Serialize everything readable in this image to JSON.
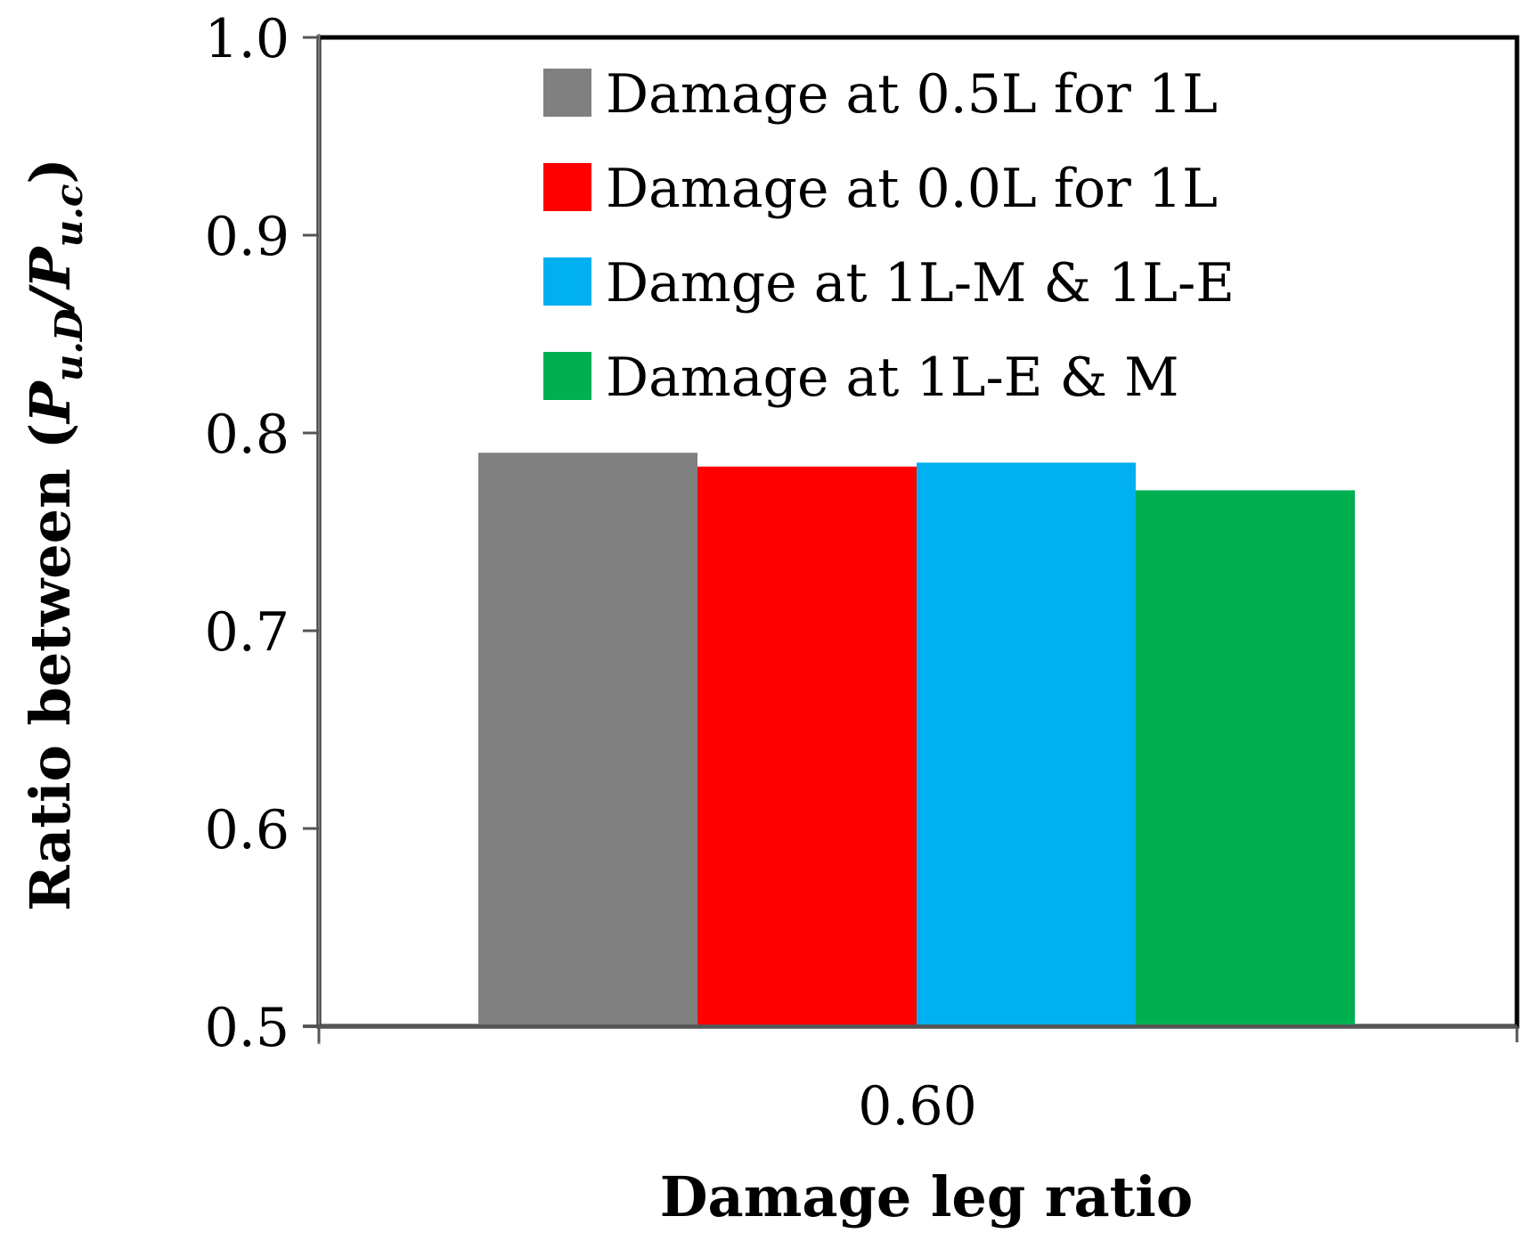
{
  "chart_data": {
    "type": "bar",
    "categories": [
      "0.60"
    ],
    "series": [
      {
        "name": "Damage at 0.5L for 1L",
        "color": "#808080",
        "values": [
          0.79
        ]
      },
      {
        "name": "Damage at 0.0L for 1L",
        "color": "#ff0000",
        "values": [
          0.783
        ]
      },
      {
        "name": "Damge at 1L-M & 1L-E",
        "color": "#00b0f0",
        "values": [
          0.785
        ]
      },
      {
        "name": "Damage at 1L-E & M",
        "color": "#00b050",
        "values": [
          0.771
        ]
      }
    ],
    "ylim": [
      0.5,
      1.0
    ],
    "yticks": [
      "0.5",
      "0.6",
      "0.7",
      "0.8",
      "0.9",
      "1.0"
    ],
    "xlabel": "Damage leg ratio",
    "ylabel_prefix": "Ratio between (",
    "ylabel_p1": "P",
    "ylabel_sub1": "u.D",
    "ylabel_slash": "/",
    "ylabel_p2": "P",
    "ylabel_sub2": "u.c",
    "ylabel_suffix": ")",
    "legend_position": "top-right",
    "grid": false
  }
}
